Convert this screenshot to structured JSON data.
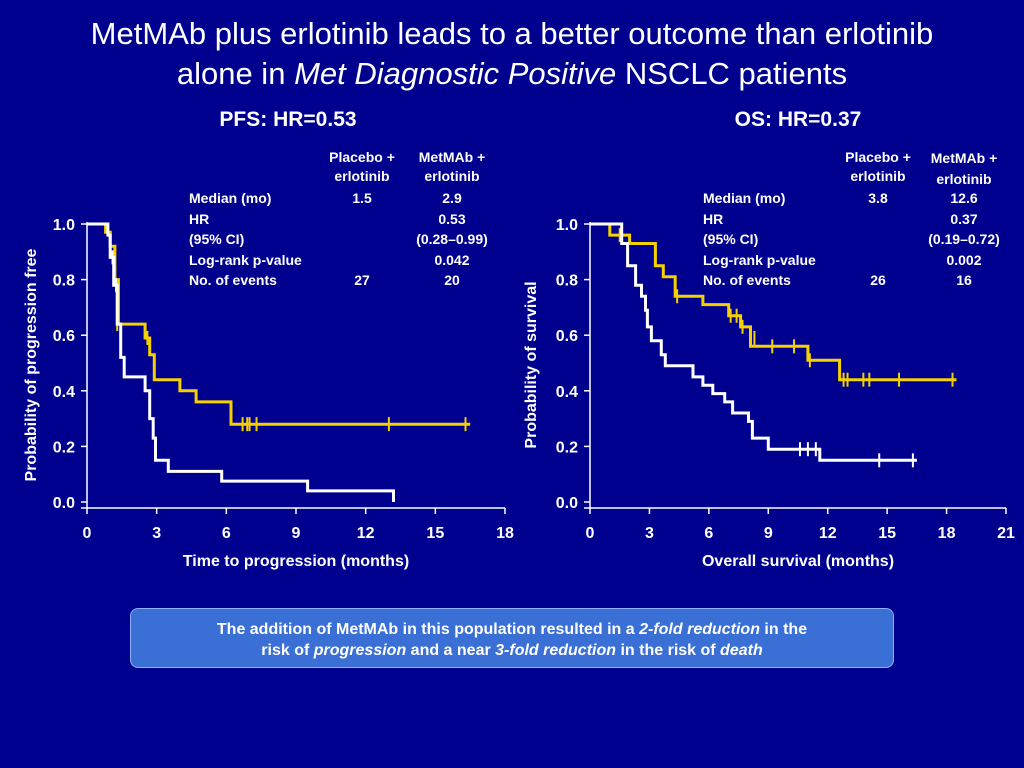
{
  "slide": {
    "title_line1": "MetMAb plus erlotinib leads to a better outcome than erlotinib",
    "title_line2_pre": "alone in ",
    "title_line2_em": "Met Diagnostic Positive",
    "title_line2_post": " NSCLC patients"
  },
  "colors": {
    "background": "#00008f",
    "placebo": "#ffffff",
    "metmab": "#f5d100",
    "callout": "#3a6fd6"
  },
  "stats_header": {
    "col1_line1": "Placebo +",
    "col1_line2": "erlotinib",
    "col2_line1": "MetMAb +",
    "col2_line2": "erlotinib"
  },
  "stats_labels": [
    "Median (mo)",
    "HR",
    "(95% CI)",
    "Log-rank p-value",
    "No. of events"
  ],
  "callout": {
    "t1": "The addition of MetMAb in this population resulted in a ",
    "t2": "2-fold reduction",
    "t3": " in the",
    "t4": "risk of ",
    "t5": "progression",
    "t6": " and a near ",
    "t7": "3-fold reduction",
    "t8": " in the risk of ",
    "t9": "death"
  },
  "chart_data": [
    {
      "type": "line",
      "step": true,
      "title": "PFS: HR=0.53",
      "xlabel": "Time to progression (months)",
      "ylabel": "Probability of progression free",
      "xlim": [
        0,
        18
      ],
      "ylim": [
        0,
        1
      ],
      "xticks": [
        "0",
        "3",
        "6",
        "9",
        "12",
        "15",
        "18"
      ],
      "yticks": [
        "0.0",
        "0.2",
        "0.4",
        "0.6",
        "0.8",
        "1.0"
      ],
      "stats": {
        "placebo": [
          "1.5",
          "",
          "",
          "",
          "27"
        ],
        "metmab": [
          "2.9",
          "0.53",
          "(0.28–0.99)",
          "0.042",
          "20"
        ]
      },
      "series": [
        {
          "key": "metmab",
          "points": [
            [
              0,
              1.0
            ],
            [
              0.8,
              1.0
            ],
            [
              0.8,
              0.97
            ],
            [
              1.0,
              0.97
            ],
            [
              1.0,
              0.92
            ],
            [
              1.2,
              0.92
            ],
            [
              1.2,
              0.8
            ],
            [
              1.35,
              0.8
            ],
            [
              1.35,
              0.64
            ],
            [
              2.5,
              0.64
            ],
            [
              2.5,
              0.59
            ],
            [
              2.7,
              0.59
            ],
            [
              2.7,
              0.53
            ],
            [
              2.9,
              0.53
            ],
            [
              2.9,
              0.44
            ],
            [
              4.0,
              0.44
            ],
            [
              4.0,
              0.4
            ],
            [
              4.7,
              0.4
            ],
            [
              4.7,
              0.36
            ],
            [
              6.2,
              0.36
            ],
            [
              6.2,
              0.28
            ],
            [
              16.5,
              0.28
            ]
          ],
          "censor": [
            [
              1.3,
              0.64
            ],
            [
              2.6,
              0.59
            ],
            [
              6.7,
              0.28
            ],
            [
              6.9,
              0.28
            ],
            [
              7.0,
              0.28
            ],
            [
              7.3,
              0.28
            ],
            [
              13.0,
              0.28
            ],
            [
              16.3,
              0.28
            ]
          ]
        },
        {
          "key": "placebo",
          "points": [
            [
              0,
              1.0
            ],
            [
              0.9,
              1.0
            ],
            [
              0.9,
              0.96
            ],
            [
              1.0,
              0.96
            ],
            [
              1.0,
              0.88
            ],
            [
              1.15,
              0.88
            ],
            [
              1.15,
              0.78
            ],
            [
              1.3,
              0.78
            ],
            [
              1.3,
              0.64
            ],
            [
              1.45,
              0.64
            ],
            [
              1.45,
              0.52
            ],
            [
              1.6,
              0.52
            ],
            [
              1.6,
              0.45
            ],
            [
              2.5,
              0.45
            ],
            [
              2.5,
              0.4
            ],
            [
              2.7,
              0.4
            ],
            [
              2.7,
              0.3
            ],
            [
              2.85,
              0.3
            ],
            [
              2.85,
              0.23
            ],
            [
              2.95,
              0.23
            ],
            [
              2.95,
              0.15
            ],
            [
              3.5,
              0.15
            ],
            [
              3.5,
              0.11
            ],
            [
              5.8,
              0.11
            ],
            [
              5.8,
              0.075
            ],
            [
              9.5,
              0.075
            ],
            [
              9.5,
              0.04
            ],
            [
              13.2,
              0.04
            ],
            [
              13.2,
              0.0
            ]
          ],
          "censor": [
            [
              1.1,
              0.88
            ],
            [
              1.25,
              0.78
            ]
          ]
        }
      ]
    },
    {
      "type": "line",
      "step": true,
      "title": "OS: HR=0.37",
      "xlabel": "Overall survival (months)",
      "ylabel": "Probability of survival",
      "xlim": [
        0,
        21
      ],
      "ylim": [
        0,
        1
      ],
      "xticks": [
        "0",
        "3",
        "6",
        "9",
        "12",
        "15",
        "18",
        "21"
      ],
      "yticks": [
        "0.0",
        "0.2",
        "0.4",
        "0.6",
        "0.8",
        "1.0"
      ],
      "stats": {
        "placebo": [
          "3.8",
          "",
          "",
          "",
          "26"
        ],
        "metmab": [
          "12.6",
          "0.37",
          "(0.19–0.72)",
          "0.002",
          "16"
        ]
      },
      "series": [
        {
          "key": "metmab",
          "points": [
            [
              0,
              1.0
            ],
            [
              1.0,
              1.0
            ],
            [
              1.0,
              0.96
            ],
            [
              2.0,
              0.96
            ],
            [
              2.0,
              0.93
            ],
            [
              3.3,
              0.93
            ],
            [
              3.3,
              0.85
            ],
            [
              3.7,
              0.85
            ],
            [
              3.7,
              0.81
            ],
            [
              4.3,
              0.81
            ],
            [
              4.3,
              0.74
            ],
            [
              5.7,
              0.74
            ],
            [
              5.7,
              0.71
            ],
            [
              7.0,
              0.71
            ],
            [
              7.0,
              0.67
            ],
            [
              7.6,
              0.67
            ],
            [
              7.6,
              0.63
            ],
            [
              8.1,
              0.63
            ],
            [
              8.1,
              0.56
            ],
            [
              11.0,
              0.56
            ],
            [
              11.0,
              0.51
            ],
            [
              12.6,
              0.51
            ],
            [
              12.6,
              0.44
            ],
            [
              18.5,
              0.44
            ]
          ],
          "censor": [
            [
              1.5,
              0.96
            ],
            [
              4.4,
              0.74
            ],
            [
              7.1,
              0.67
            ],
            [
              7.4,
              0.67
            ],
            [
              7.7,
              0.63
            ],
            [
              8.3,
              0.59
            ],
            [
              9.2,
              0.56
            ],
            [
              10.3,
              0.56
            ],
            [
              11.1,
              0.51
            ],
            [
              12.8,
              0.44
            ],
            [
              13.0,
              0.44
            ],
            [
              13.8,
              0.44
            ],
            [
              14.1,
              0.44
            ],
            [
              15.6,
              0.44
            ],
            [
              18.3,
              0.44
            ]
          ]
        },
        {
          "key": "placebo",
          "points": [
            [
              0,
              1.0
            ],
            [
              1.6,
              1.0
            ],
            [
              1.6,
              0.93
            ],
            [
              1.9,
              0.93
            ],
            [
              1.9,
              0.85
            ],
            [
              2.3,
              0.85
            ],
            [
              2.3,
              0.78
            ],
            [
              2.6,
              0.78
            ],
            [
              2.6,
              0.74
            ],
            [
              2.8,
              0.74
            ],
            [
              2.8,
              0.69
            ],
            [
              2.9,
              0.69
            ],
            [
              2.9,
              0.63
            ],
            [
              3.1,
              0.63
            ],
            [
              3.1,
              0.58
            ],
            [
              3.6,
              0.58
            ],
            [
              3.6,
              0.53
            ],
            [
              3.8,
              0.53
            ],
            [
              3.8,
              0.49
            ],
            [
              5.2,
              0.49
            ],
            [
              5.2,
              0.45
            ],
            [
              5.7,
              0.45
            ],
            [
              5.7,
              0.42
            ],
            [
              6.2,
              0.42
            ],
            [
              6.2,
              0.39
            ],
            [
              6.8,
              0.39
            ],
            [
              6.8,
              0.36
            ],
            [
              7.2,
              0.36
            ],
            [
              7.2,
              0.32
            ],
            [
              8.0,
              0.32
            ],
            [
              8.0,
              0.29
            ],
            [
              8.2,
              0.29
            ],
            [
              8.2,
              0.23
            ],
            [
              9.0,
              0.23
            ],
            [
              9.0,
              0.19
            ],
            [
              11.6,
              0.19
            ],
            [
              11.6,
              0.15
            ],
            [
              16.5,
              0.15
            ]
          ],
          "censor": [
            [
              10.6,
              0.19
            ],
            [
              11.0,
              0.19
            ],
            [
              11.4,
              0.19
            ],
            [
              14.6,
              0.15
            ],
            [
              16.3,
              0.15
            ]
          ]
        }
      ]
    }
  ]
}
